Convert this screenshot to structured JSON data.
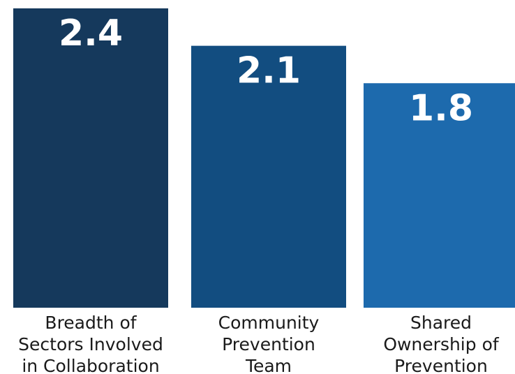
{
  "chart_data": {
    "type": "bar",
    "categories": [
      [
        "Breadth of",
        "Sectors Involved",
        "in Collaboration"
      ],
      [
        "Community",
        "Prevention",
        "Team"
      ],
      [
        "Shared",
        "Ownership of",
        "Prevention"
      ]
    ],
    "values": [
      2.4,
      2.1,
      1.8
    ],
    "value_labels": [
      "2.4",
      "2.1",
      "1.8"
    ],
    "colors": [
      "#15395c",
      "#124d80",
      "#1d6aad"
    ],
    "title": "",
    "xlabel": "",
    "ylabel": "",
    "ylim": [
      0,
      2.4
    ],
    "grid": false,
    "legend": "none"
  }
}
